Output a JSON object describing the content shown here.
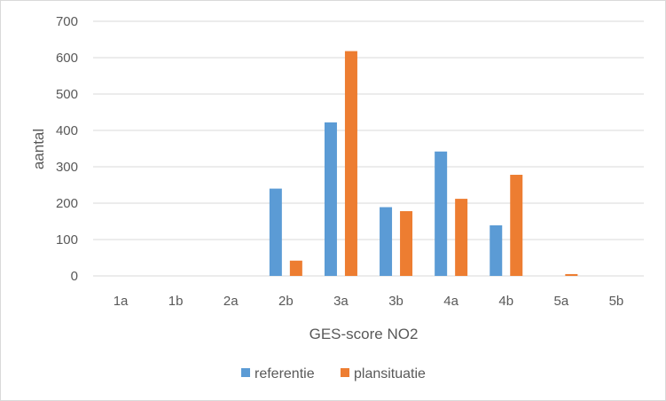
{
  "chart_data": {
    "type": "bar",
    "title": "",
    "xlabel": "GES-score NO2",
    "ylabel": "aantal",
    "ylim": [
      0,
      700
    ],
    "yticks": [
      0,
      100,
      200,
      300,
      400,
      500,
      600,
      700
    ],
    "grid": true,
    "legend": "bottom",
    "categories": [
      "1a",
      "1b",
      "2a",
      "2b",
      "3a",
      "3b",
      "4a",
      "4b",
      "5a",
      "5b"
    ],
    "series": [
      {
        "name": "referentie",
        "color": "#5b9bd5",
        "values": [
          0,
          0,
          0,
          240,
          422,
          189,
          342,
          139,
          0,
          0
        ]
      },
      {
        "name": "plansituatie",
        "color": "#ed7d31",
        "values": [
          0,
          0,
          0,
          42,
          618,
          178,
          212,
          278,
          5,
          0
        ]
      }
    ]
  }
}
